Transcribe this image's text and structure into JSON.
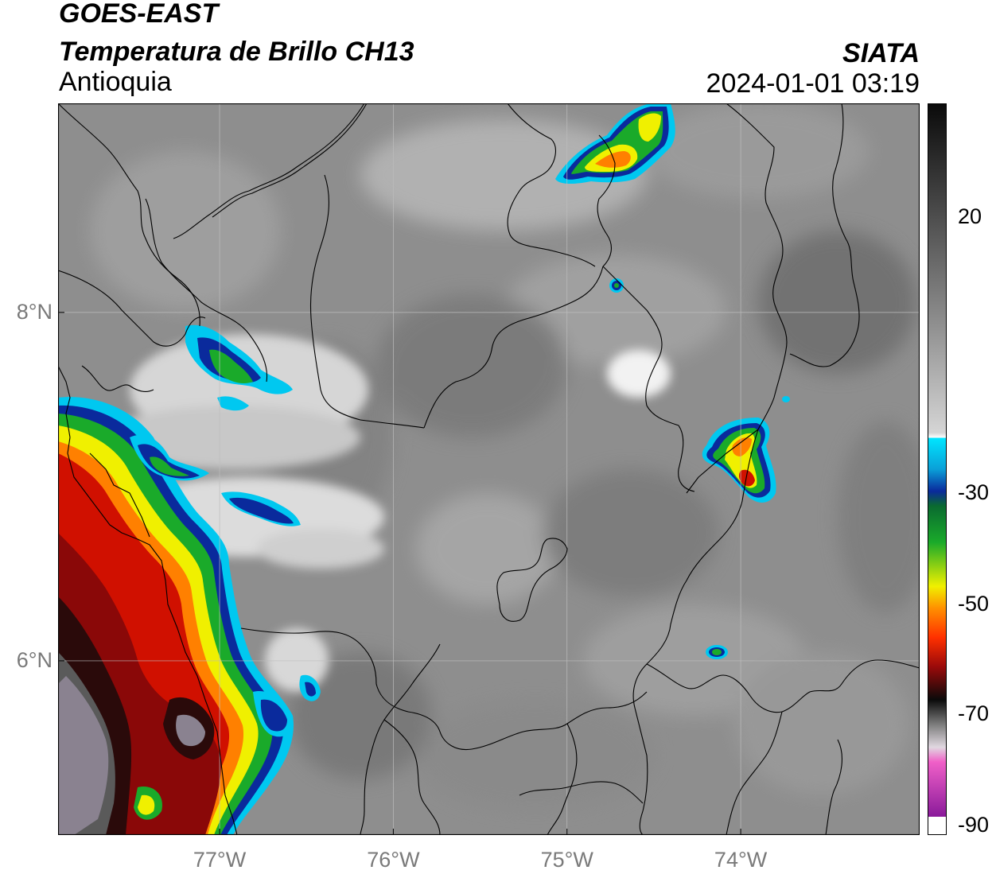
{
  "header": {
    "satellite": "GOES-EAST",
    "product": "Temperatura de Brillo CH13",
    "region": "Antioquia",
    "agency": "SIATA",
    "datetime": "2024-01-01 03:19"
  },
  "map": {
    "lon_range": [
      -77.93,
      -72.97
    ],
    "lat_range": [
      5.0,
      9.2
    ],
    "lon_ticks": [
      {
        "value": -77,
        "label": "77°W"
      },
      {
        "value": -76,
        "label": "76°W"
      },
      {
        "value": -75,
        "label": "75°W"
      },
      {
        "value": -74,
        "label": "74°W"
      }
    ],
    "lat_ticks": [
      {
        "value": 8,
        "label": "8°N"
      },
      {
        "value": 6,
        "label": "6°N"
      }
    ]
  },
  "colorbar": {
    "range": [
      -90,
      40
    ],
    "ticks": [
      {
        "value": 20,
        "label": "20"
      },
      {
        "value": -30,
        "label": "-30"
      },
      {
        "value": -50,
        "label": "-50"
      },
      {
        "value": -70,
        "label": "-70"
      },
      {
        "value": -90,
        "label": "-90"
      }
    ],
    "colors": {
      "warm": "#8c8c8c",
      "cyan": "#00c8f0",
      "blue": "#0a2a9c",
      "green": "#1aaa2a",
      "yellow": "#f0f000",
      "orange": "#ff8000",
      "red": "#d01000",
      "black": "#0a0a0a",
      "pink": "#f060c8",
      "purple": "#8a1a9a"
    }
  }
}
